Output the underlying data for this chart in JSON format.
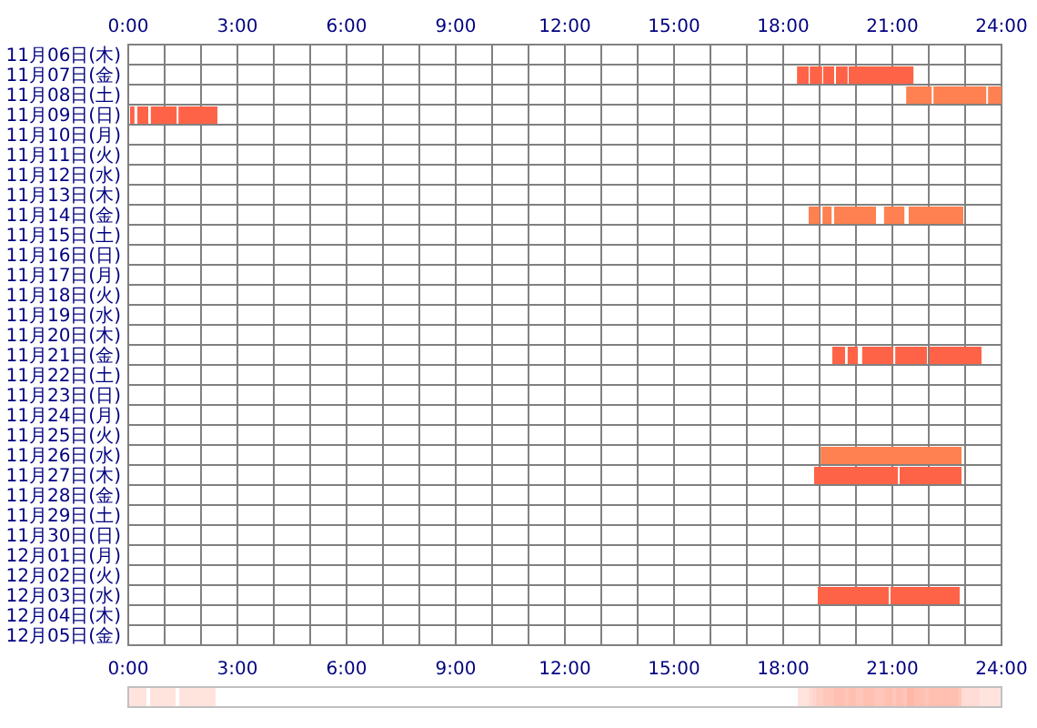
{
  "chart_data": {
    "type": "bar",
    "orientation": "horizontal",
    "categories": [
      "11月06日(木)",
      "11月07日(金)",
      "11月08日(土)",
      "11月09日(日)",
      "11月10日(月)",
      "11月11日(火)",
      "11月12日(水)",
      "11月13日(木)",
      "11月14日(金)",
      "11月15日(土)",
      "11月16日(日)",
      "11月17日(月)",
      "11月18日(火)",
      "11月19日(水)",
      "11月20日(木)",
      "11月21日(金)",
      "11月22日(土)",
      "11月23日(日)",
      "11月24日(月)",
      "11月25日(火)",
      "11月26日(水)",
      "11月27日(木)",
      "11月28日(金)",
      "11月29日(土)",
      "11月30日(日)",
      "12月01日(月)",
      "12月02日(火)",
      "12月03日(水)",
      "12月04日(木)",
      "12月05日(金)"
    ],
    "xlim": [
      0,
      24
    ],
    "xticks": [
      {
        "value": 0,
        "label": "0:00"
      },
      {
        "value": 1,
        "label": null
      },
      {
        "value": 2,
        "label": null
      },
      {
        "value": 3,
        "label": "3:00"
      },
      {
        "value": 4,
        "label": null
      },
      {
        "value": 5,
        "label": null
      },
      {
        "value": 6,
        "label": "6:00"
      },
      {
        "value": 7,
        "label": null
      },
      {
        "value": 8,
        "label": null
      },
      {
        "value": 9,
        "label": "9:00"
      },
      {
        "value": 10,
        "label": null
      },
      {
        "value": 11,
        "label": null
      },
      {
        "value": 12,
        "label": "12:00"
      },
      {
        "value": 13,
        "label": null
      },
      {
        "value": 14,
        "label": null
      },
      {
        "value": 15,
        "label": "15:00"
      },
      {
        "value": 16,
        "label": null
      },
      {
        "value": 17,
        "label": null
      },
      {
        "value": 18,
        "label": "18:00"
      },
      {
        "value": 19,
        "label": null
      },
      {
        "value": 20,
        "label": null
      },
      {
        "value": 21,
        "label": "21:00"
      },
      {
        "value": 22,
        "label": null
      },
      {
        "value": 23,
        "label": null
      },
      {
        "value": 24,
        "label": "24:00"
      }
    ],
    "x2lim": [
      0,
      24
    ],
    "x2ticks": [
      {
        "value": 0,
        "label": "0:00"
      },
      {
        "value": 1,
        "label": null
      },
      {
        "value": 2,
        "label": null
      },
      {
        "value": 3,
        "label": "3:00"
      },
      {
        "value": 4,
        "label": null
      },
      {
        "value": 5,
        "label": null
      },
      {
        "value": 6,
        "label": "6:00"
      },
      {
        "value": 7,
        "label": null
      },
      {
        "value": 8,
        "label": null
      },
      {
        "value": 9,
        "label": "9:00"
      },
      {
        "value": 10,
        "label": null
      },
      {
        "value": 11,
        "label": null
      },
      {
        "value": 12,
        "label": "12:00"
      },
      {
        "value": 13,
        "label": null
      },
      {
        "value": 14,
        "label": null
      },
      {
        "value": 15,
        "label": "15:00"
      },
      {
        "value": 16,
        "label": null
      },
      {
        "value": 17,
        "label": null
      },
      {
        "value": 18,
        "label": "18:00"
      },
      {
        "value": 19,
        "label": null
      },
      {
        "value": 20,
        "label": null
      },
      {
        "value": 21,
        "label": "21:00"
      },
      {
        "value": 22,
        "label": null
      },
      {
        "value": 23,
        "label": null
      },
      {
        "value": 24,
        "label": "24:00"
      }
    ],
    "grid": true,
    "series": [
      {
        "values": [
          null,
          0.32,
          0.7,
          0.12,
          null,
          null,
          null,
          null,
          0.3,
          null,
          null,
          null,
          null,
          null,
          null,
          0.35,
          null,
          null,
          null,
          null,
          3.87,
          2.3,
          null,
          null,
          null,
          null,
          null,
          1.95,
          null,
          null
        ],
        "base": [
          null,
          18.38,
          21.38,
          0.05,
          null,
          null,
          null,
          null,
          18.7,
          null,
          null,
          null,
          null,
          null,
          null,
          19.35,
          null,
          null,
          null,
          null,
          19.03,
          18.85,
          null,
          null,
          null,
          null,
          null,
          18.95,
          null,
          null
        ],
        "colors": [
          null,
          "#ff6347",
          "#ff8050",
          "#ff6347",
          null,
          null,
          null,
          null,
          "#ff8050",
          null,
          null,
          null,
          null,
          null,
          null,
          "#ff6347",
          null,
          null,
          null,
          null,
          "#ff8050",
          "#ff6347",
          null,
          null,
          null,
          null,
          null,
          "#ff6347",
          null,
          null
        ]
      },
      {
        "values": [
          null,
          0.34,
          1.45,
          0.3,
          null,
          null,
          null,
          null,
          0.25,
          null,
          null,
          null,
          null,
          null,
          null,
          0.28,
          null,
          null,
          null,
          null,
          null,
          1.7,
          null,
          null,
          null,
          null,
          null,
          1.9,
          null,
          null
        ],
        "base": [
          null,
          18.73,
          22.13,
          0.25,
          null,
          null,
          null,
          null,
          19.08,
          null,
          null,
          null,
          null,
          null,
          null,
          19.77,
          null,
          null,
          null,
          null,
          null,
          21.2,
          null,
          null,
          null,
          null,
          null,
          20.95,
          null,
          null
        ],
        "colors": [
          null,
          "#ff6347",
          "#ff8050",
          "#ff6347",
          null,
          null,
          null,
          null,
          "#ff8050",
          null,
          null,
          null,
          null,
          null,
          null,
          "#ff6347",
          null,
          null,
          null,
          null,
          null,
          "#ff6347",
          null,
          null,
          null,
          null,
          null,
          "#ff6347",
          null,
          null
        ]
      },
      {
        "values": [
          null,
          0.3,
          0.37,
          0.71,
          null,
          null,
          null,
          null,
          1.15,
          null,
          null,
          null,
          null,
          null,
          null,
          0.85,
          null,
          null,
          null,
          null,
          null,
          null,
          null,
          null,
          null,
          null,
          null,
          null,
          null,
          null
        ],
        "base": [
          null,
          19.1,
          23.63,
          0.62,
          null,
          null,
          null,
          null,
          19.4,
          null,
          null,
          null,
          null,
          null,
          null,
          20.17,
          null,
          null,
          null,
          null,
          null,
          null,
          null,
          null,
          null,
          null,
          null,
          null,
          null,
          null
        ],
        "colors": [
          null,
          "#ff6347",
          "#ff8050",
          "#ff6347",
          null,
          null,
          null,
          null,
          "#ff8050",
          null,
          null,
          null,
          null,
          null,
          null,
          "#ff6347",
          null,
          null,
          null,
          null,
          null,
          null,
          null,
          null,
          null,
          null,
          null,
          null,
          null,
          null
        ]
      },
      {
        "values": [
          null,
          0.32,
          null,
          1.07,
          null,
          null,
          null,
          null,
          0.56,
          null,
          null,
          null,
          null,
          null,
          null,
          0.87,
          null,
          null,
          null,
          null,
          null,
          null,
          null,
          null,
          null,
          null,
          null,
          null,
          null,
          null
        ],
        "base": [
          null,
          19.45,
          null,
          1.38,
          null,
          null,
          null,
          null,
          20.77,
          null,
          null,
          null,
          null,
          null,
          null,
          21.08,
          null,
          null,
          null,
          null,
          null,
          null,
          null,
          null,
          null,
          null,
          null,
          null,
          null,
          null
        ],
        "colors": [
          null,
          "#ff6347",
          null,
          "#ff6347",
          null,
          null,
          null,
          null,
          "#ff8050",
          null,
          null,
          null,
          null,
          null,
          null,
          "#ff6347",
          null,
          null,
          null,
          null,
          null,
          null,
          null,
          null,
          null,
          null,
          null,
          null,
          null,
          null
        ]
      },
      {
        "values": [
          null,
          1.78,
          null,
          null,
          null,
          null,
          null,
          null,
          1.5,
          null,
          null,
          null,
          null,
          null,
          null,
          1.43,
          null,
          null,
          null,
          null,
          null,
          null,
          null,
          null,
          null,
          null,
          null,
          null,
          null,
          null
        ],
        "base": [
          null,
          19.8,
          null,
          null,
          null,
          null,
          null,
          null,
          21.45,
          null,
          null,
          null,
          null,
          null,
          null,
          22.02,
          null,
          null,
          null,
          null,
          null,
          null,
          null,
          null,
          null,
          null,
          null,
          null,
          null,
          null
        ],
        "colors": [
          null,
          "#ff6347",
          null,
          null,
          null,
          null,
          null,
          null,
          "#ff8050",
          null,
          null,
          null,
          null,
          null,
          null,
          "#ff6347",
          null,
          null,
          null,
          null,
          null,
          null,
          null,
          null,
          null,
          null,
          null,
          null,
          null,
          null
        ]
      }
    ]
  }
}
